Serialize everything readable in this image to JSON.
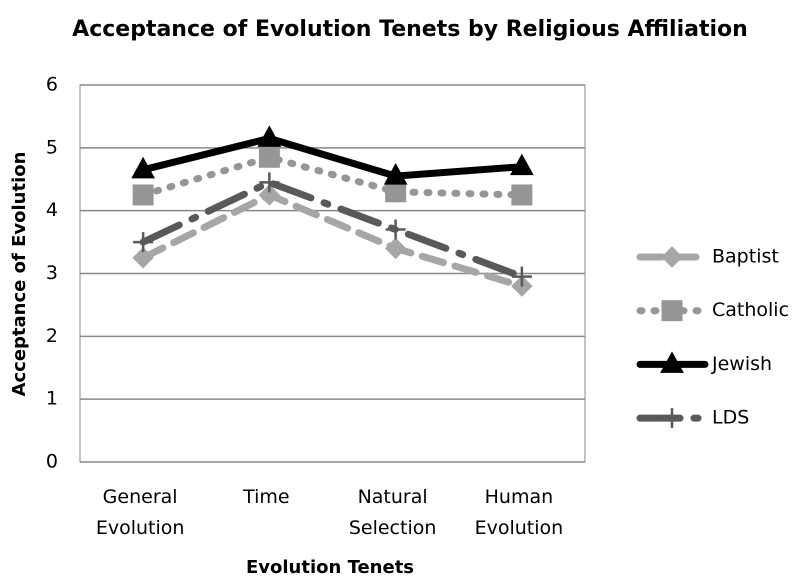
{
  "chart_data": {
    "type": "line",
    "title": "Acceptance of Evolution Tenets by Religious Affiliation",
    "xlabel": "Evolution Tenets",
    "ylabel": "Acceptance of Evolution",
    "categories": [
      "General Evolution",
      "Time",
      "Natural Selection",
      "Human Evolution"
    ],
    "series": [
      {
        "name": "Baptist",
        "color": "#a6a6a6",
        "dash": "dashed",
        "marker": "diamond",
        "values": [
          3.25,
          4.25,
          3.4,
          2.8
        ]
      },
      {
        "name": "Catholic",
        "color": "#969696",
        "dash": "dotted",
        "marker": "square",
        "values": [
          4.25,
          4.85,
          4.3,
          4.25
        ]
      },
      {
        "name": "Jewish",
        "color": "#000000",
        "dash": "solid",
        "marker": "triangle",
        "values": [
          4.65,
          5.15,
          4.55,
          4.7
        ]
      },
      {
        "name": "LDS",
        "color": "#595959",
        "dash": "dashdot",
        "marker": "plus",
        "values": [
          3.5,
          4.45,
          3.7,
          2.95
        ]
      }
    ],
    "ylim": [
      0,
      6
    ],
    "yticks": [
      0,
      1,
      2,
      3,
      4,
      5,
      6
    ],
    "grid": true,
    "legend": "right"
  }
}
